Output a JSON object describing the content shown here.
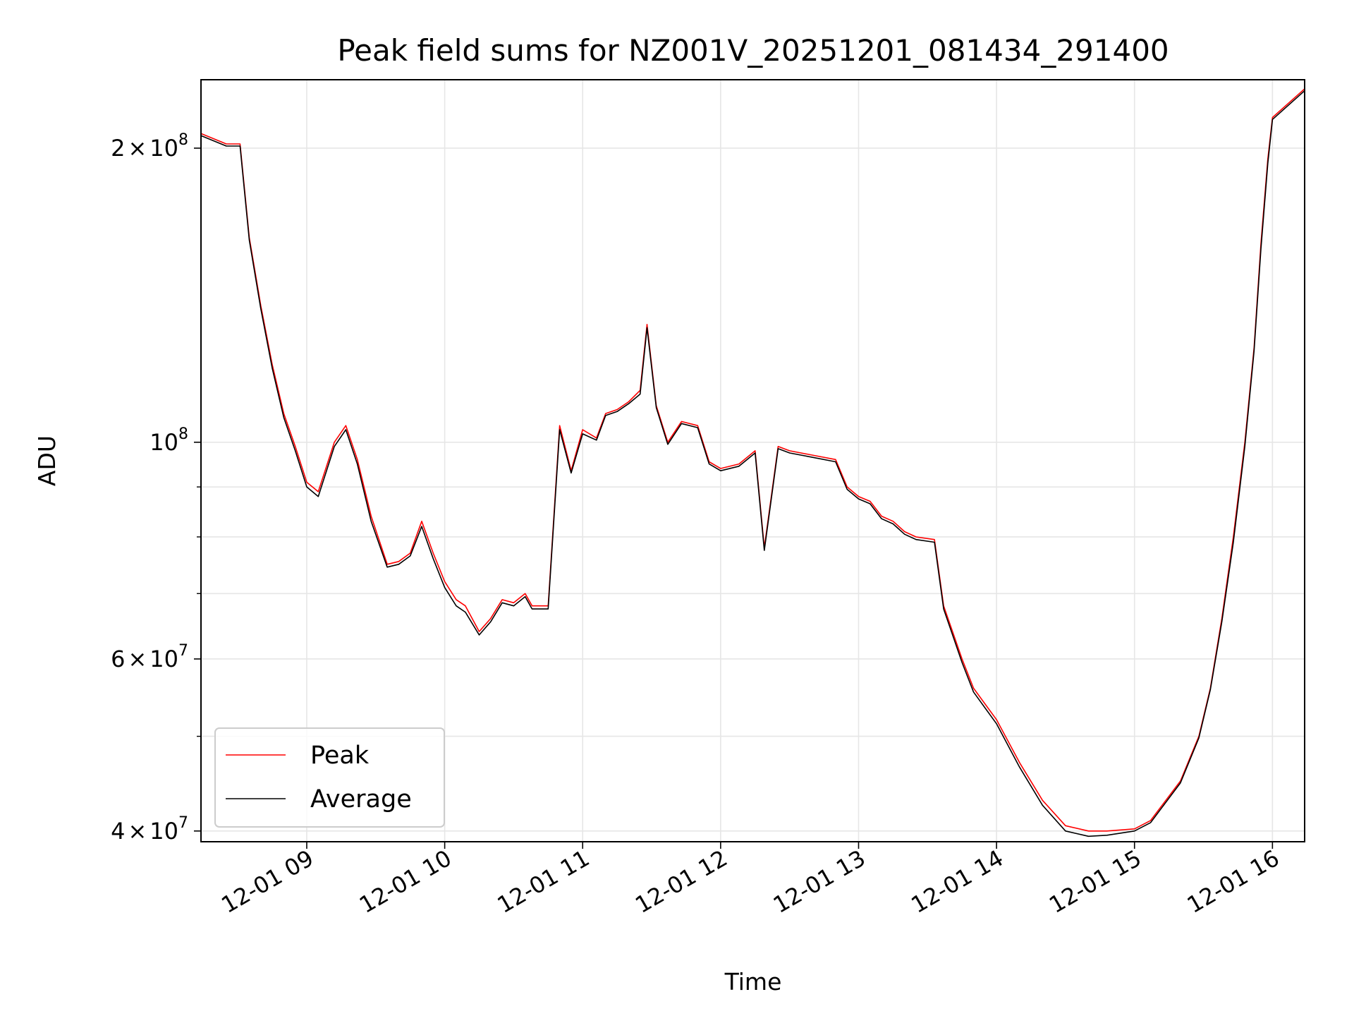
{
  "chart_data": {
    "type": "line",
    "title": "Peak field sums for NZ001V_20251201_081434_291400",
    "xlabel": "Time",
    "ylabel": "ADU",
    "yscale": "log",
    "xlim": [
      "12-01 08:14",
      "12-01 16:14"
    ],
    "ylim": [
      39000000,
      235000000
    ],
    "grid": true,
    "legend_position": "lower-left",
    "x_ticks": [
      {
        "value": "12-01 09:00",
        "label": "12-01 09"
      },
      {
        "value": "12-01 10:00",
        "label": "12-01 10"
      },
      {
        "value": "12-01 11:00",
        "label": "12-01 11"
      },
      {
        "value": "12-01 12:00",
        "label": "12-01 12"
      },
      {
        "value": "12-01 13:00",
        "label": "12-01 13"
      },
      {
        "value": "12-01 14:00",
        "label": "12-01 14"
      },
      {
        "value": "12-01 15:00",
        "label": "12-01 15"
      },
      {
        "value": "12-01 16:00",
        "label": "12-01 16"
      }
    ],
    "y_ticks": [
      {
        "value": 40000000,
        "mantissa": "4",
        "exponent": "7"
      },
      {
        "value": 60000000,
        "mantissa": "6",
        "exponent": "7"
      },
      {
        "value": 100000000,
        "mantissa": "",
        "exponent": "8"
      },
      {
        "value": 200000000,
        "mantissa": "2",
        "exponent": "8"
      }
    ],
    "y_minor_ticks": [
      50000000,
      70000000,
      80000000,
      90000000
    ],
    "x": [
      "12-01 08:14",
      "12-01 08:25",
      "12-01 08:31",
      "12-01 08:35",
      "12-01 08:40",
      "12-01 08:45",
      "12-01 08:50",
      "12-01 08:55",
      "12-01 09:00",
      "12-01 09:05",
      "12-01 09:12",
      "12-01 09:17",
      "12-01 09:22",
      "12-01 09:28",
      "12-01 09:35",
      "12-01 09:40",
      "12-01 09:45",
      "12-01 09:50",
      "12-01 09:55",
      "12-01 10:00",
      "12-01 10:05",
      "12-01 10:09",
      "12-01 10:15",
      "12-01 10:20",
      "12-01 10:25",
      "12-01 10:30",
      "12-01 10:35",
      "12-01 10:38",
      "12-01 10:45",
      "12-01 10:50",
      "12-01 10:55",
      "12-01 11:00",
      "12-01 11:06",
      "12-01 11:10",
      "12-01 11:15",
      "12-01 11:20",
      "12-01 11:25",
      "12-01 11:28",
      "12-01 11:32",
      "12-01 11:37",
      "12-01 11:43",
      "12-01 11:50",
      "12-01 11:55",
      "12-01 12:00",
      "12-01 12:08",
      "12-01 12:15",
      "12-01 12:19",
      "12-01 12:25",
      "12-01 12:30",
      "12-01 12:40",
      "12-01 12:50",
      "12-01 12:55",
      "12-01 13:00",
      "12-01 13:05",
      "12-01 13:10",
      "12-01 13:15",
      "12-01 13:20",
      "12-01 13:25",
      "12-01 13:33",
      "12-01 13:37",
      "12-01 13:45",
      "12-01 13:50",
      "12-01 14:00",
      "12-01 14:10",
      "12-01 14:20",
      "12-01 14:30",
      "12-01 14:40",
      "12-01 14:48",
      "12-01 15:00",
      "12-01 15:07",
      "12-01 15:12",
      "12-01 15:20",
      "12-01 15:28",
      "12-01 15:33",
      "12-01 15:38",
      "12-01 15:43",
      "12-01 15:48",
      "12-01 15:52",
      "12-01 15:55",
      "12-01 15:58",
      "12-01 16:00",
      "12-01 16:14"
    ],
    "series": [
      {
        "name": "Peak",
        "color": "#ff0000",
        "values": [
          207000000,
          202000000,
          202000000,
          162000000,
          138000000,
          120000000,
          107000000,
          99000000,
          91000000,
          89000000,
          100000000,
          104000000,
          96000000,
          84000000,
          75000000,
          75500000,
          77000000,
          83000000,
          77000000,
          72000000,
          69000000,
          68000000,
          64000000,
          66000000,
          69000000,
          68500000,
          70000000,
          68000000,
          68000000,
          104000000,
          93500000,
          103000000,
          101000000,
          107000000,
          108000000,
          110000000,
          113000000,
          132000000,
          109000000,
          100000000,
          105000000,
          104000000,
          95500000,
          94000000,
          95000000,
          98000000,
          78000000,
          99000000,
          98000000,
          97000000,
          96000000,
          90000000,
          88000000,
          87000000,
          84000000,
          83000000,
          81000000,
          80000000,
          79500000,
          68000000,
          60000000,
          56000000,
          52000000,
          47000000,
          43000000,
          40500000,
          40000000,
          40000000,
          40200000,
          41000000,
          42500000,
          45000000,
          50000000,
          56000000,
          66000000,
          80000000,
          100000000,
          125000000,
          160000000,
          195000000,
          215000000,
          230000000
        ]
      },
      {
        "name": "Average",
        "color": "#000000",
        "values": [
          206000000,
          201000000,
          201000000,
          161000000,
          137000000,
          119000000,
          106000000,
          98000000,
          90000000,
          88000000,
          99000000,
          103000000,
          95000000,
          83000000,
          74500000,
          75000000,
          76500000,
          82000000,
          76000000,
          71000000,
          68000000,
          67000000,
          63500000,
          65500000,
          68500000,
          68000000,
          69500000,
          67500000,
          67500000,
          103000000,
          93000000,
          102000000,
          100500000,
          106500000,
          107500000,
          109500000,
          112000000,
          131000000,
          108500000,
          99500000,
          104500000,
          103500000,
          95000000,
          93500000,
          94500000,
          97500000,
          77500000,
          98500000,
          97500000,
          96500000,
          95500000,
          89500000,
          87500000,
          86500000,
          83500000,
          82500000,
          80500000,
          79500000,
          79000000,
          67500000,
          59500000,
          55500000,
          51500000,
          46500000,
          42500000,
          40000000,
          39500000,
          39600000,
          40000000,
          40800000,
          42300000,
          44800000,
          49800000,
          55800000,
          65500000,
          79000000,
          99000000,
          124000000,
          158000000,
          193000000,
          214000000,
          229000000
        ]
      }
    ]
  }
}
